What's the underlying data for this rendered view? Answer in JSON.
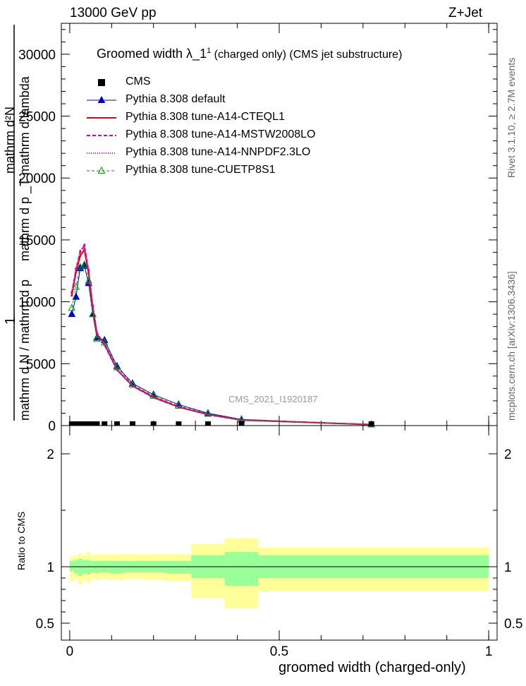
{
  "header": {
    "energy": "13000 GeV pp",
    "process": "Z+Jet"
  },
  "side": {
    "rivet": "Rivet 3.1.10, ≥ 2.7M events",
    "mcplots": "mcplots.cern.ch [arXiv:1306.3436]"
  },
  "analysis_id": "CMS_2021_I1920187",
  "colors": {
    "default": "#0000cc",
    "cteql1": "#ee0000",
    "mstw": "#ee0077",
    "nnpdf": "#cc00cc",
    "cuetp8s1": "#00a000",
    "band_outer": "#ffff99",
    "band_inner": "#99ff99"
  },
  "chart_data": [
    {
      "type": "line",
      "title": "Groomed width  λ_1¹ (charged only) (CMS jet substructure)",
      "title_parts": {
        "main": "Groomed width  λ_1",
        "sup": "1",
        "rest": " (charged only) (CMS jet substructure)"
      },
      "ylabel_numerator": "mathrm d²N",
      "ylabel_denominator": "mathrm d p _T mathrm d lambda",
      "ylabel_prefix": "1",
      "ylabel_prefix_den": "mathrm d N / mathrm d p",
      "xlim": [
        0,
        1
      ],
      "ylim": [
        0,
        32500
      ],
      "y_ticks": [
        "0",
        "5000",
        "10000",
        "15000",
        "20000",
        "25000",
        "30000"
      ],
      "legend": [
        {
          "label": "CMS",
          "style": "square"
        },
        {
          "label": "Pythia 8.308 default",
          "style": "blue-triangle"
        },
        {
          "label": "Pythia 8.308 tune-A14-CTEQL1",
          "style": "red-solid"
        },
        {
          "label": "Pythia 8.308 tune-A14-MSTW2008LO",
          "style": "pink-dashed"
        },
        {
          "label": "Pythia 8.308 tune-A14-NNPDF2.3LO",
          "style": "magenta-dotted"
        },
        {
          "label": "Pythia 8.308 tune-CUETP8S1",
          "style": "green-open-triangle"
        }
      ],
      "legend_position": "top-left",
      "cms_points": {
        "x": [
          0.005,
          0.015,
          0.025,
          0.035,
          0.045,
          0.055,
          0.065,
          0.083,
          0.113,
          0.15,
          0.2,
          0.26,
          0.33,
          0.41,
          0.72
        ],
        "y": [
          0,
          0,
          0,
          0,
          0,
          0,
          0,
          0,
          0,
          0,
          0,
          0,
          0,
          0,
          0
        ]
      },
      "series": [
        {
          "name": "Pythia 8.308 default",
          "x": [
            0.005,
            0.015,
            0.025,
            0.035,
            0.045,
            0.055,
            0.065,
            0.083,
            0.113,
            0.15,
            0.2,
            0.26,
            0.33,
            0.41,
            0.72
          ],
          "y": [
            9000,
            10400,
            12700,
            12900,
            11500,
            9000,
            7100,
            6900,
            4800,
            3400,
            2500,
            1700,
            1000,
            500,
            100
          ]
        },
        {
          "name": "Pythia 8.308 tune-A14-CTEQL1",
          "x": [
            0.005,
            0.015,
            0.025,
            0.035,
            0.045,
            0.055,
            0.065,
            0.083,
            0.113,
            0.15,
            0.2,
            0.26,
            0.33,
            0.41,
            0.72
          ],
          "y": [
            10500,
            12400,
            13700,
            14200,
            12300,
            9500,
            7400,
            6600,
            4500,
            3200,
            2300,
            1500,
            900,
            450,
            80
          ]
        },
        {
          "name": "Pythia 8.308 tune-A14-MSTW2008LO",
          "x": [
            0.005,
            0.015,
            0.025,
            0.035,
            0.045,
            0.055,
            0.065,
            0.083,
            0.113,
            0.15,
            0.2,
            0.26,
            0.33,
            0.41,
            0.72
          ],
          "y": [
            10700,
            12600,
            14000,
            14500,
            12500,
            9600,
            7500,
            6500,
            4500,
            3200,
            2250,
            1500,
            880,
            440,
            80
          ]
        },
        {
          "name": "Pythia 8.308 tune-A14-NNPDF2.3LO",
          "x": [
            0.005,
            0.015,
            0.025,
            0.035,
            0.045,
            0.055,
            0.065,
            0.083,
            0.113,
            0.15,
            0.2,
            0.26,
            0.33,
            0.41,
            0.72
          ],
          "y": [
            10800,
            12700,
            14100,
            14600,
            12600,
            9700,
            7500,
            6500,
            4500,
            3200,
            2250,
            1500,
            880,
            440,
            80
          ]
        },
        {
          "name": "Pythia 8.308 tune-CUETP8S1",
          "x": [
            0.005,
            0.015,
            0.025,
            0.035,
            0.045,
            0.055,
            0.065,
            0.083,
            0.113,
            0.15,
            0.2,
            0.26,
            0.33,
            0.41,
            0.72
          ],
          "y": [
            9500,
            11200,
            12800,
            13000,
            11700,
            9000,
            7000,
            6700,
            4700,
            3300,
            2400,
            1600,
            950,
            470,
            90
          ]
        }
      ]
    },
    {
      "type": "area",
      "ylabel": "Ratio to CMS",
      "xlabel": "groomed width (charged-only)",
      "xlim": [
        -0.02,
        1.02
      ],
      "ylim": [
        0.35,
        2.25
      ],
      "x_ticks": [
        "0",
        "0.5",
        "1"
      ],
      "y_ticks": [
        "0.5",
        "1",
        "2"
      ],
      "bins": [
        {
          "x0": 0.0,
          "x1": 0.01,
          "inner": [
            0.96,
            1.05
          ],
          "outer": [
            0.87,
            1.09
          ]
        },
        {
          "x0": 0.01,
          "x1": 0.02,
          "inner": [
            0.94,
            1.06
          ],
          "outer": [
            0.89,
            1.1
          ]
        },
        {
          "x0": 0.02,
          "x1": 0.03,
          "inner": [
            0.92,
            1.07
          ],
          "outer": [
            0.84,
            1.12
          ]
        },
        {
          "x0": 0.03,
          "x1": 0.04,
          "inner": [
            0.94,
            1.06
          ],
          "outer": [
            0.88,
            1.1
          ]
        },
        {
          "x0": 0.04,
          "x1": 0.05,
          "inner": [
            0.93,
            1.06
          ],
          "outer": [
            0.86,
            1.13
          ]
        },
        {
          "x0": 0.05,
          "x1": 0.06,
          "inner": [
            0.95,
            1.05
          ],
          "outer": [
            0.89,
            1.1
          ]
        },
        {
          "x0": 0.06,
          "x1": 0.07,
          "inner": [
            0.94,
            1.05
          ],
          "outer": [
            0.88,
            1.11
          ]
        },
        {
          "x0": 0.07,
          "x1": 0.095,
          "inner": [
            0.95,
            1.05
          ],
          "outer": [
            0.89,
            1.11
          ]
        },
        {
          "x0": 0.095,
          "x1": 0.13,
          "inner": [
            0.94,
            1.05
          ],
          "outer": [
            0.88,
            1.11
          ]
        },
        {
          "x0": 0.13,
          "x1": 0.175,
          "inner": [
            0.95,
            1.05
          ],
          "outer": [
            0.89,
            1.11
          ]
        },
        {
          "x0": 0.175,
          "x1": 0.23,
          "inner": [
            0.95,
            1.05
          ],
          "outer": [
            0.88,
            1.11
          ]
        },
        {
          "x0": 0.23,
          "x1": 0.29,
          "inner": [
            0.94,
            1.05
          ],
          "outer": [
            0.87,
            1.11
          ]
        },
        {
          "x0": 0.29,
          "x1": 0.37,
          "inner": [
            0.9,
            1.1
          ],
          "outer": [
            0.72,
            1.2
          ]
        },
        {
          "x0": 0.37,
          "x1": 0.45,
          "inner": [
            0.83,
            1.13
          ],
          "outer": [
            0.63,
            1.25
          ]
        },
        {
          "x0": 0.45,
          "x1": 1.0,
          "inner": [
            0.9,
            1.1
          ],
          "outer": [
            0.78,
            1.17
          ]
        }
      ]
    }
  ]
}
